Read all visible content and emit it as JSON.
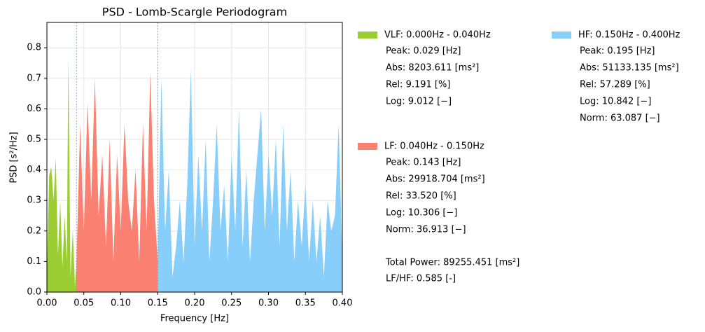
{
  "chart_data": {
    "type": "area",
    "title": "PSD - Lomb-Scargle Periodogram",
    "x_label": "Frequency [Hz]",
    "y_label": "PSD [s²/Hz]",
    "xlim": [
      0,
      0.4
    ],
    "ylim": [
      0,
      0.883
    ],
    "xticks": [
      {
        "value": 0,
        "label": "0.00"
      },
      {
        "value": 0.05,
        "label": "0.05"
      },
      {
        "value": 0.1,
        "label": "0.10"
      },
      {
        "value": 0.15,
        "label": "0.15"
      },
      {
        "value": 0.2,
        "label": "0.20"
      },
      {
        "value": 0.25,
        "label": "0.25"
      },
      {
        "value": 0.3,
        "label": "0.30"
      },
      {
        "value": 0.35,
        "label": "0.35"
      },
      {
        "value": 0.4,
        "label": "0.40"
      }
    ],
    "yticks": [
      {
        "value": 0,
        "label": "0.0"
      },
      0.1,
      0.2,
      0.3,
      0.4,
      0.5,
      0.6,
      0.7,
      0.8
    ],
    "grid": true,
    "vlines": [
      0.04,
      0.15
    ],
    "series": [
      {
        "name": "VLF: 0.000Hz - 0.040Hz",
        "color": "#9acd32",
        "details": [
          "Peak: 0.029 [Hz]",
          "Abs:  8203.611 [ms²]",
          "Rel:  9.191 [%]",
          "Log:  9.012 [−]"
        ],
        "x": [
          0,
          0.003,
          0.006,
          0.009,
          0.012,
          0.015,
          0.018,
          0.021,
          0.024,
          0.027,
          0.029,
          0.032,
          0.035,
          0.038,
          0.04
        ],
        "values": [
          0.05,
          0.38,
          0.41,
          0.3,
          0.44,
          0.12,
          0.3,
          0.08,
          0.25,
          0.1,
          0.77,
          0.05,
          0.2,
          0.02,
          0.09
        ]
      },
      {
        "name": "LF: 0.040Hz - 0.150Hz",
        "color": "#fa8072",
        "details": [
          "Peak: 0.143 [Hz]",
          "Abs:  29918.704 [ms²]",
          "Rel:  33.520 [%]",
          "Log:  10.306 [−]",
          "Norm: 36.913 [−]"
        ],
        "x": [
          0.04,
          0.045,
          0.05,
          0.055,
          0.06,
          0.065,
          0.07,
          0.075,
          0.08,
          0.085,
          0.09,
          0.095,
          0.1,
          0.105,
          0.11,
          0.115,
          0.12,
          0.125,
          0.13,
          0.135,
          0.14,
          0.145,
          0.15
        ],
        "values": [
          0.09,
          0.55,
          0.2,
          0.62,
          0.3,
          0.7,
          0.25,
          0.45,
          0.15,
          0.5,
          0.1,
          0.45,
          0.2,
          0.55,
          0.3,
          0.2,
          0.4,
          0.1,
          0.55,
          0.2,
          0.72,
          0.3,
          0.1
        ]
      },
      {
        "name": "HF: 0.150Hz - 0.400Hz",
        "color": "#87cefa",
        "details": [
          "Peak: 0.195 [Hz]",
          "Abs:  51133.135 [ms²]",
          "Rel:  57.289 [%]",
          "Log:  10.842 [−]",
          "Norm: 63.087 [−]"
        ],
        "x": [
          0.15,
          0.155,
          0.16,
          0.165,
          0.17,
          0.175,
          0.18,
          0.185,
          0.19,
          0.195,
          0.2,
          0.205,
          0.21,
          0.215,
          0.22,
          0.225,
          0.23,
          0.235,
          0.24,
          0.245,
          0.25,
          0.255,
          0.26,
          0.265,
          0.27,
          0.275,
          0.28,
          0.285,
          0.29,
          0.295,
          0.3,
          0.305,
          0.31,
          0.315,
          0.32,
          0.325,
          0.33,
          0.335,
          0.34,
          0.345,
          0.35,
          0.355,
          0.36,
          0.365,
          0.37,
          0.375,
          0.38,
          0.385,
          0.39,
          0.395,
          0.4
        ],
        "values": [
          0.1,
          0.7,
          0.2,
          0.4,
          0.05,
          0.15,
          0.3,
          0.1,
          0.35,
          0.73,
          0.15,
          0.45,
          0.2,
          0.5,
          0.1,
          0.3,
          0.55,
          0.2,
          0.35,
          0.1,
          0.45,
          0.2,
          0.6,
          0.15,
          0.4,
          0.1,
          0.3,
          0.45,
          0.6,
          0.2,
          0.45,
          0.25,
          0.5,
          0.15,
          0.55,
          0.2,
          0.4,
          0.1,
          0.3,
          0.15,
          0.35,
          0.1,
          0.3,
          0.1,
          0.25,
          0.05,
          0.3,
          0.2,
          0.25,
          0.55,
          0.1
        ]
      }
    ],
    "annotations": [
      "Total Power: 89255.451 [ms²]",
      "LF/HF: 0.585 [-]"
    ]
  }
}
